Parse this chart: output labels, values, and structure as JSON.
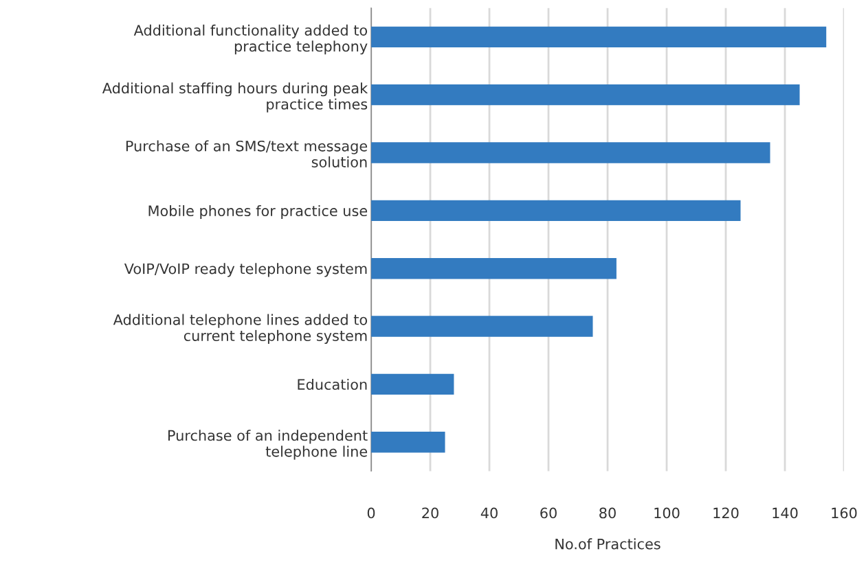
{
  "chart_data": {
    "type": "bar",
    "orientation": "horizontal",
    "xlabel": "No.of Practices",
    "categories": [
      "Additional functionality added to\npractice telephony",
      "Additional staffing hours during peak\npractice times",
      "Purchase of an SMS/text message\nsolution",
      "Mobile phones for practice use",
      "VoIP/VoIP ready telephone system",
      "Additional telephone lines added to\ncurrent telephone system",
      "Education",
      "Purchase of an independent\ntelephone line"
    ],
    "values": [
      154,
      145,
      135,
      125,
      83,
      75,
      28,
      25
    ],
    "color": "#337bc0",
    "xlim": [
      0,
      160
    ],
    "xticks": [
      0,
      20,
      40,
      60,
      80,
      100,
      120,
      140,
      160
    ],
    "grid": "x",
    "legend": false
  }
}
